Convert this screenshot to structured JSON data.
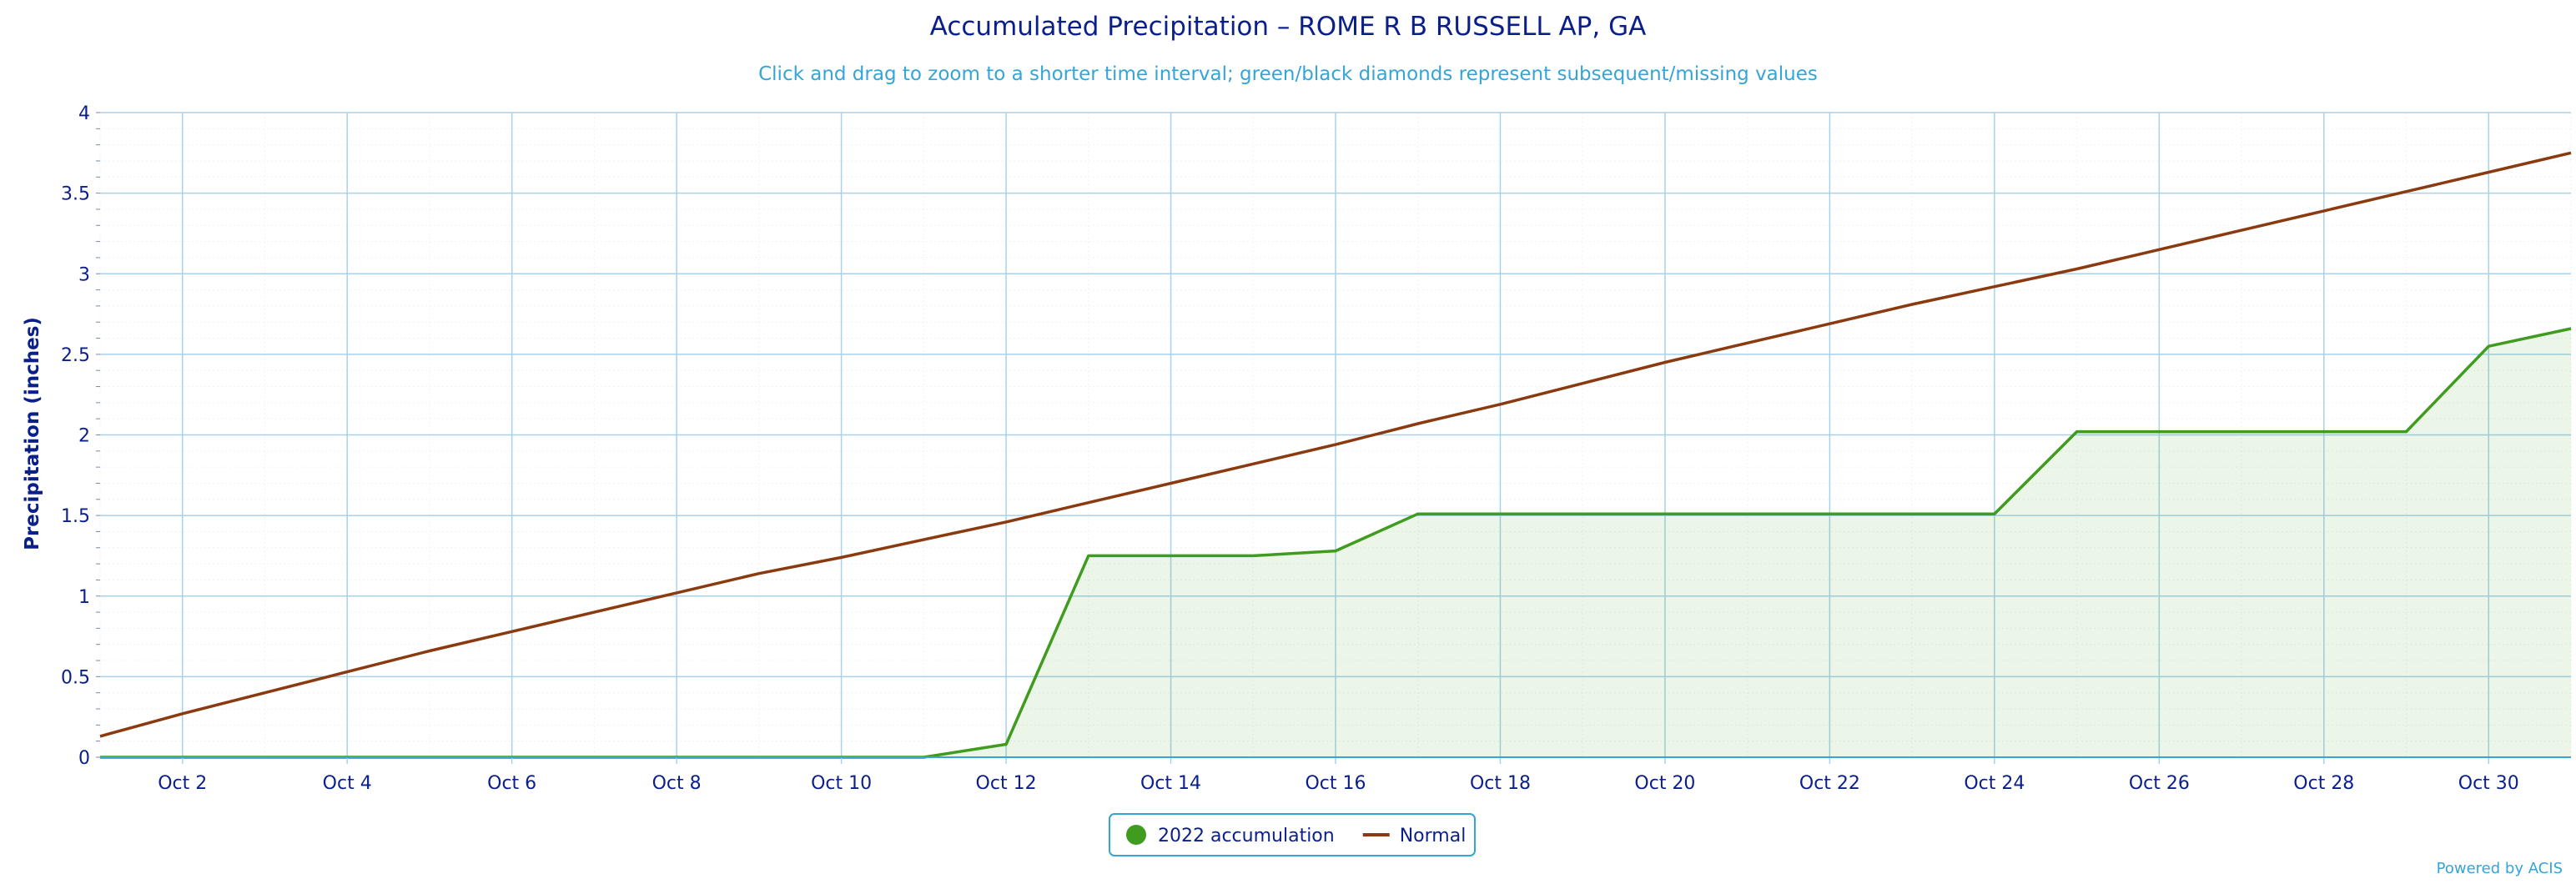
{
  "chart_data": {
    "type": "area",
    "title": "Accumulated Precipitation – ROME R B RUSSELL AP, GA",
    "subtitle": "Click and drag to zoom to a shorter time interval; green/black diamonds represent subsequent/missing values",
    "ylabel": "Precipitation (inches)",
    "xlabel": "",
    "ylim": [
      0,
      4
    ],
    "xlim": [
      "Oct 1",
      "Oct 31"
    ],
    "x_ticks": [
      "Oct 2",
      "Oct 4",
      "Oct 6",
      "Oct 8",
      "Oct 10",
      "Oct 12",
      "Oct 14",
      "Oct 16",
      "Oct 18",
      "Oct 20",
      "Oct 22",
      "Oct 24",
      "Oct 26",
      "Oct 28",
      "Oct 30"
    ],
    "y_ticks": [
      "0",
      "0.5",
      "1",
      "1.5",
      "2",
      "2.5",
      "3",
      "3.5",
      "4"
    ],
    "x": [
      "Oct 1",
      "Oct 2",
      "Oct 3",
      "Oct 4",
      "Oct 5",
      "Oct 6",
      "Oct 7",
      "Oct 8",
      "Oct 9",
      "Oct 10",
      "Oct 11",
      "Oct 12",
      "Oct 13",
      "Oct 14",
      "Oct 15",
      "Oct 16",
      "Oct 17",
      "Oct 18",
      "Oct 19",
      "Oct 20",
      "Oct 21",
      "Oct 22",
      "Oct 23",
      "Oct 24",
      "Oct 25",
      "Oct 26",
      "Oct 27",
      "Oct 28",
      "Oct 29",
      "Oct 30",
      "Oct 31"
    ],
    "grid": true,
    "legend": "bottom-center",
    "series": [
      {
        "name": "2022 accumulation",
        "type": "area",
        "color": "#3f9c1f",
        "values": [
          0,
          0,
          0,
          0,
          0,
          0,
          0,
          0,
          0,
          0,
          0,
          0.08,
          1.25,
          1.25,
          1.25,
          1.28,
          1.51,
          1.51,
          1.51,
          1.51,
          1.51,
          1.51,
          1.51,
          1.51,
          2.02,
          2.02,
          2.02,
          2.02,
          2.02,
          2.55,
          2.66
        ]
      },
      {
        "name": "Normal",
        "type": "line",
        "color": "#8b3a0f",
        "values": [
          0.13,
          0.27,
          0.4,
          0.53,
          0.66,
          0.78,
          0.9,
          1.02,
          1.14,
          1.24,
          1.35,
          1.46,
          1.58,
          1.7,
          1.82,
          1.94,
          2.07,
          2.19,
          2.32,
          2.45,
          2.57,
          2.69,
          2.81,
          2.92,
          3.03,
          3.15,
          3.27,
          3.39,
          3.51,
          3.63,
          3.75
        ]
      }
    ]
  },
  "credit": "Powered by ACIS"
}
